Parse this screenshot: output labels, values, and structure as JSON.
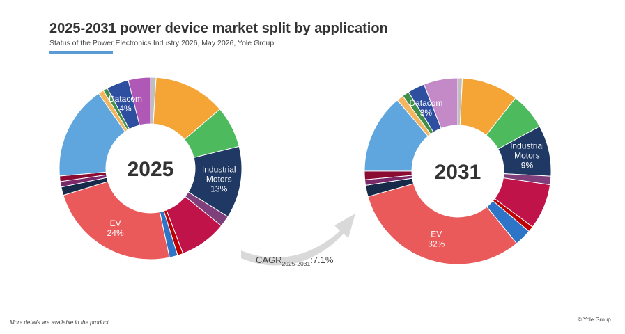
{
  "header": {
    "title": "2025-2031 power device market split by application",
    "subtitle": "Status of the Power Electronics Industry 2026, May 2026, Yole Group"
  },
  "cagr": {
    "prefix": "CAGR",
    "period": "2025-2031",
    "value": ":7.1%"
  },
  "footer": {
    "note": "More details are available in the product",
    "copyright": "© Yole Group"
  },
  "colors": {
    "accent": "#5b9bd5",
    "arrow": "#d9d9d9"
  },
  "chart_data": [
    {
      "type": "pie",
      "center_label": "2025",
      "slices": [
        {
          "label": "",
          "value": 1,
          "color": "#bfbfbf"
        },
        {
          "label": "",
          "value": 13,
          "color": "#f5a536"
        },
        {
          "label": "",
          "value": 7.5,
          "color": "#4cba5d"
        },
        {
          "label": "Industrial Motors",
          "pct_text": "13%",
          "value": 13,
          "color": "#1f3864",
          "label_color": "#ffffff"
        },
        {
          "label": "",
          "value": 2,
          "color": "#7e3f7a"
        },
        {
          "label": "",
          "value": 8.5,
          "color": "#c0134a"
        },
        {
          "label": "",
          "value": 1,
          "color": "#c00000"
        },
        {
          "label": "",
          "value": 1.5,
          "color": "#2e75c7"
        },
        {
          "label": "EV",
          "pct_text": "24%",
          "value": 24,
          "color": "#eb5a5a",
          "label_color": "#ffffff"
        },
        {
          "label": "",
          "value": 1.5,
          "color": "#172a4a"
        },
        {
          "label": "",
          "value": 1,
          "color": "#7a2a6a"
        },
        {
          "label": "",
          "value": 1,
          "color": "#8b0c32"
        },
        {
          "label": "",
          "value": 17,
          "color": "#5ea6dd"
        },
        {
          "label": "",
          "value": 1,
          "color": "#f3b560"
        },
        {
          "label": "",
          "value": 0.8,
          "color": "#3f8f4a"
        },
        {
          "label": "Datacom",
          "pct_text": "4%",
          "value": 4,
          "color": "#2e4ea0",
          "label_color": "#ffffff"
        },
        {
          "label": "",
          "value": 4,
          "color": "#b058b5"
        }
      ]
    },
    {
      "type": "pie",
      "center_label": "2031",
      "slices": [
        {
          "label": "",
          "value": 0.8,
          "color": "#bfbfbf"
        },
        {
          "label": "",
          "value": 10,
          "color": "#f5a536"
        },
        {
          "label": "",
          "value": 6.5,
          "color": "#4cba5d"
        },
        {
          "label": "Industrial Motors",
          "pct_text": "9%",
          "value": 9,
          "color": "#1f3864",
          "label_color": "#ffffff"
        },
        {
          "label": "",
          "value": 1.5,
          "color": "#7e3f7a"
        },
        {
          "label": "",
          "value": 8,
          "color": "#c0134a"
        },
        {
          "label": "",
          "value": 1,
          "color": "#c00000"
        },
        {
          "label": "",
          "value": 3,
          "color": "#2e75c7"
        },
        {
          "label": "EV",
          "pct_text": "32%",
          "value": 32,
          "color": "#eb5a5a",
          "label_color": "#ffffff"
        },
        {
          "label": "",
          "value": 2,
          "color": "#172a4a"
        },
        {
          "label": "",
          "value": 1,
          "color": "#7a2a6a"
        },
        {
          "label": "",
          "value": 1.5,
          "color": "#8b0c32"
        },
        {
          "label": "",
          "value": 14,
          "color": "#5ea6dd"
        },
        {
          "label": "",
          "value": 1.2,
          "color": "#f3b560"
        },
        {
          "label": "",
          "value": 1.2,
          "color": "#3f8f4a"
        },
        {
          "label": "Datacom",
          "pct_text": "3%",
          "value": 3,
          "color": "#2e4ea0",
          "label_color": "#ffffff"
        },
        {
          "label": "",
          "value": 6,
          "color": "#c48ac8"
        }
      ]
    }
  ]
}
